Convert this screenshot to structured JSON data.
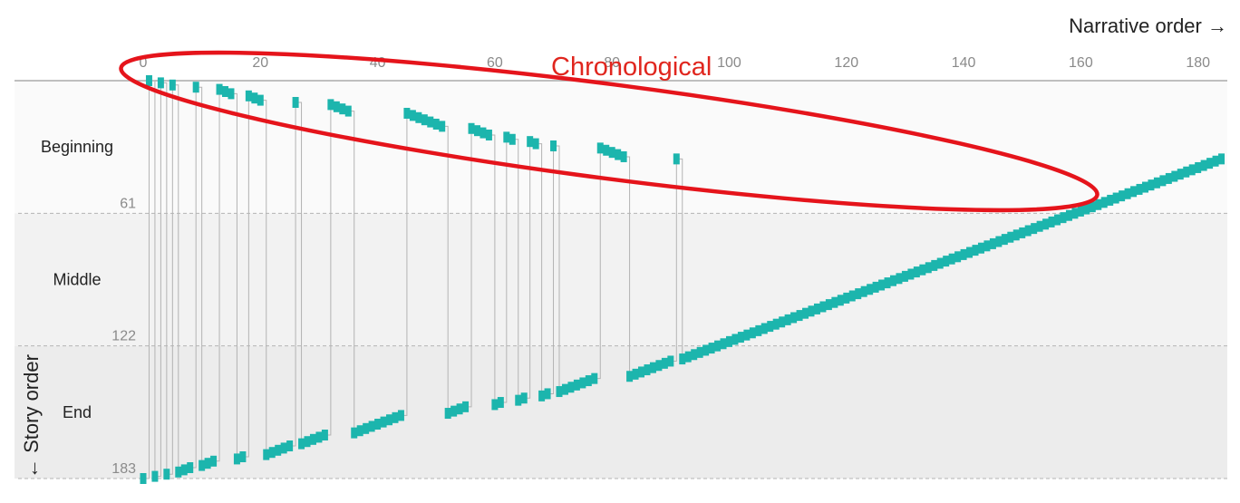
{
  "chart_data": {
    "type": "scatter",
    "title": "",
    "xlabel": "Narrative order →",
    "ylabel": "← Story order",
    "xlim": [
      0,
      185
    ],
    "ylim": [
      0,
      183
    ],
    "x_ticks": [
      0,
      20,
      40,
      60,
      80,
      100,
      120,
      140,
      160,
      180
    ],
    "y_ticks": [
      61,
      122,
      183
    ],
    "bands": [
      {
        "name": "Beginning",
        "from": 0,
        "to": 61
      },
      {
        "name": "Middle",
        "from": 61,
        "to": 122
      },
      {
        "name": "End",
        "from": 122,
        "to": 183
      }
    ],
    "annotation": "Chronological",
    "series": [
      {
        "points": [
          [
            0,
            183
          ],
          [
            1,
            0
          ],
          [
            2,
            182
          ],
          [
            3,
            1
          ],
          [
            4,
            181
          ],
          [
            5,
            2
          ],
          [
            6,
            180
          ],
          [
            7,
            179
          ],
          [
            8,
            178
          ],
          [
            9,
            3
          ],
          [
            10,
            177
          ],
          [
            11,
            176
          ],
          [
            12,
            175
          ],
          [
            13,
            4
          ],
          [
            14,
            5
          ],
          [
            15,
            6
          ],
          [
            16,
            174
          ],
          [
            17,
            173
          ],
          [
            18,
            7
          ],
          [
            19,
            8
          ],
          [
            20,
            9
          ],
          [
            21,
            172
          ],
          [
            22,
            171
          ],
          [
            23,
            170
          ],
          [
            24,
            169
          ],
          [
            25,
            168
          ],
          [
            26,
            10
          ],
          [
            27,
            167
          ],
          [
            28,
            166
          ],
          [
            29,
            165
          ],
          [
            30,
            164
          ],
          [
            31,
            163
          ],
          [
            32,
            11
          ],
          [
            33,
            12
          ],
          [
            34,
            13
          ],
          [
            35,
            14
          ],
          [
            36,
            162
          ],
          [
            37,
            161
          ],
          [
            38,
            160
          ],
          [
            39,
            159
          ],
          [
            40,
            158
          ],
          [
            41,
            157
          ],
          [
            42,
            156
          ],
          [
            43,
            155
          ],
          [
            44,
            154
          ],
          [
            45,
            15
          ],
          [
            46,
            16
          ],
          [
            47,
            17
          ],
          [
            48,
            18
          ],
          [
            49,
            19
          ],
          [
            50,
            20
          ],
          [
            51,
            21
          ],
          [
            52,
            153
          ],
          [
            53,
            152
          ],
          [
            54,
            151
          ],
          [
            55,
            150
          ],
          [
            56,
            22
          ],
          [
            57,
            23
          ],
          [
            58,
            24
          ],
          [
            59,
            25
          ],
          [
            60,
            149
          ],
          [
            61,
            148
          ],
          [
            62,
            26
          ],
          [
            63,
            27
          ],
          [
            64,
            147
          ],
          [
            65,
            146
          ],
          [
            66,
            28
          ],
          [
            67,
            29
          ],
          [
            68,
            145
          ],
          [
            69,
            144
          ],
          [
            70,
            30
          ],
          [
            71,
            143
          ],
          [
            72,
            142
          ],
          [
            73,
            141
          ],
          [
            74,
            140
          ],
          [
            75,
            139
          ],
          [
            76,
            138
          ],
          [
            77,
            137
          ],
          [
            78,
            31
          ],
          [
            79,
            32
          ],
          [
            80,
            33
          ],
          [
            81,
            34
          ],
          [
            82,
            35
          ],
          [
            83,
            136
          ],
          [
            84,
            135
          ],
          [
            85,
            134
          ],
          [
            86,
            133
          ],
          [
            87,
            132
          ],
          [
            88,
            131
          ],
          [
            89,
            130
          ],
          [
            90,
            129
          ],
          [
            91,
            36
          ],
          [
            92,
            128
          ],
          [
            93,
            127
          ],
          [
            94,
            126
          ],
          [
            95,
            125
          ],
          [
            96,
            124
          ],
          [
            97,
            123
          ],
          [
            98,
            122
          ],
          [
            99,
            121
          ],
          [
            100,
            120
          ],
          [
            101,
            119
          ],
          [
            102,
            118
          ],
          [
            103,
            117
          ],
          [
            104,
            116
          ],
          [
            105,
            115
          ],
          [
            106,
            114
          ],
          [
            107,
            113
          ],
          [
            108,
            112
          ],
          [
            109,
            111
          ],
          [
            110,
            110
          ],
          [
            111,
            109
          ],
          [
            112,
            108
          ],
          [
            113,
            107
          ],
          [
            114,
            106
          ],
          [
            115,
            105
          ],
          [
            116,
            104
          ],
          [
            117,
            103
          ],
          [
            118,
            102
          ],
          [
            119,
            101
          ],
          [
            120,
            100
          ],
          [
            121,
            99
          ],
          [
            122,
            98
          ],
          [
            123,
            97
          ],
          [
            124,
            96
          ],
          [
            125,
            95
          ],
          [
            126,
            94
          ],
          [
            127,
            93
          ],
          [
            128,
            92
          ],
          [
            129,
            91
          ],
          [
            130,
            90
          ],
          [
            131,
            89
          ],
          [
            132,
            88
          ],
          [
            133,
            87
          ],
          [
            134,
            86
          ],
          [
            135,
            85
          ],
          [
            136,
            84
          ],
          [
            137,
            83
          ],
          [
            138,
            82
          ],
          [
            139,
            81
          ],
          [
            140,
            80
          ],
          [
            141,
            79
          ],
          [
            142,
            78
          ],
          [
            143,
            77
          ],
          [
            144,
            76
          ],
          [
            145,
            75
          ],
          [
            146,
            74
          ],
          [
            147,
            73
          ],
          [
            148,
            72
          ],
          [
            149,
            71
          ],
          [
            150,
            70
          ],
          [
            151,
            69
          ],
          [
            152,
            68
          ],
          [
            153,
            67
          ],
          [
            154,
            66
          ],
          [
            155,
            65
          ],
          [
            156,
            64
          ],
          [
            157,
            63
          ],
          [
            158,
            62
          ],
          [
            159,
            61
          ],
          [
            160,
            60
          ],
          [
            161,
            59
          ],
          [
            162,
            58
          ],
          [
            163,
            57
          ],
          [
            164,
            56
          ],
          [
            165,
            55
          ],
          [
            166,
            54
          ],
          [
            167,
            53
          ],
          [
            168,
            52
          ],
          [
            169,
            51
          ],
          [
            170,
            50
          ],
          [
            171,
            49
          ],
          [
            172,
            48
          ],
          [
            173,
            47
          ],
          [
            174,
            46
          ],
          [
            175,
            45
          ],
          [
            176,
            44
          ],
          [
            177,
            43
          ],
          [
            178,
            42
          ],
          [
            179,
            41
          ],
          [
            180,
            40
          ],
          [
            181,
            39
          ],
          [
            182,
            38
          ],
          [
            183,
            37
          ],
          [
            184,
            36
          ]
        ]
      }
    ]
  }
}
